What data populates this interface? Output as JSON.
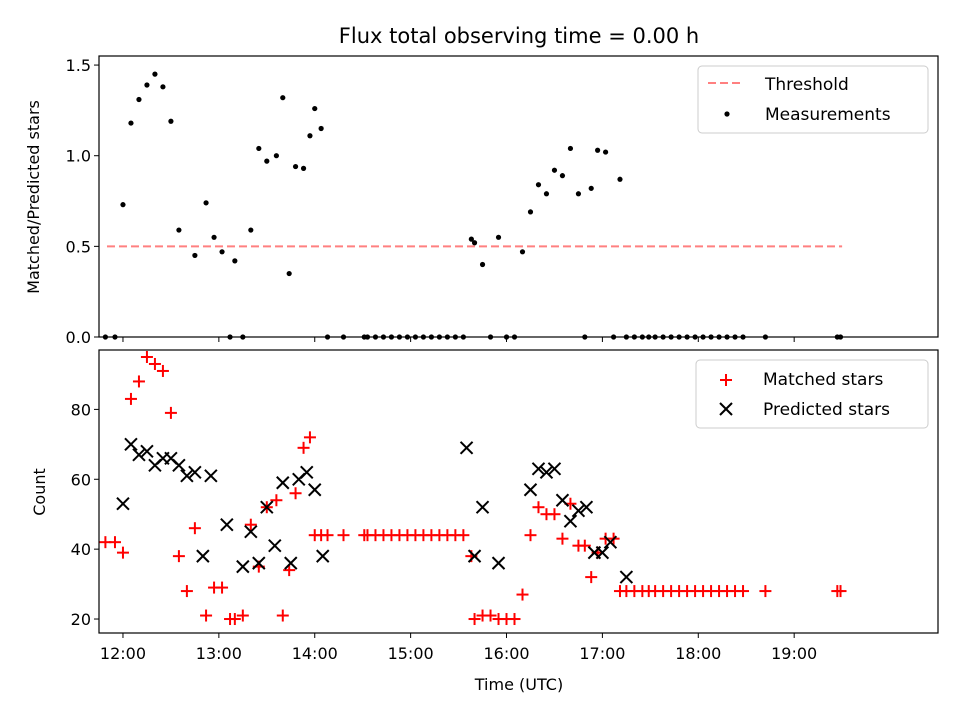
{
  "title": "Flux total observing time = 0.00 h",
  "colors": {
    "threshold": "#ff8080",
    "measurement": "#000000",
    "matched": "#ff0000",
    "predicted": "#000000"
  },
  "chart_data": [
    {
      "type": "scatter",
      "panel": "top",
      "ylabel": "Matched/Predicted stars",
      "xlabel": "",
      "xlim": [
        "11:45",
        "20:30"
      ],
      "ylim": [
        0,
        1.55
      ],
      "yticks": [
        "0.0",
        "0.5",
        "1.0",
        "1.5"
      ],
      "legend": {
        "position": "top-right",
        "entries": [
          "Threshold",
          "Measurements"
        ]
      },
      "threshold": {
        "name": "Threshold",
        "value": 0.5,
        "x_range": [
          "11:50",
          "19:30"
        ]
      },
      "series": [
        {
          "name": "Measurements",
          "x": [
            "11:49",
            "11:55",
            "12:00",
            "12:05",
            "12:10",
            "12:15",
            "12:20",
            "12:25",
            "12:30",
            "12:35",
            "12:45",
            "12:52",
            "12:57",
            "13:02",
            "13:07",
            "13:10",
            "13:15",
            "13:20",
            "13:25",
            "13:30",
            "13:36",
            "13:40",
            "13:44",
            "13:48",
            "13:53",
            "13:57",
            "14:00",
            "14:04",
            "14:08",
            "14:18",
            "14:31",
            "14:33",
            "14:38",
            "14:43",
            "14:48",
            "14:53",
            "14:58",
            "15:03",
            "15:08",
            "15:13",
            "15:18",
            "15:23",
            "15:28",
            "15:33",
            "15:38",
            "15:40",
            "15:45",
            "15:50",
            "15:55",
            "16:00",
            "16:05",
            "16:10",
            "16:15",
            "16:20",
            "16:25",
            "16:30",
            "16:35",
            "16:40",
            "16:45",
            "16:49",
            "16:53",
            "16:57",
            "17:02",
            "17:07",
            "17:11",
            "17:15",
            "17:20",
            "17:25",
            "17:29",
            "17:33",
            "17:38",
            "17:43",
            "17:48",
            "17:53",
            "17:58",
            "18:03",
            "18:08",
            "18:13",
            "18:18",
            "18:23",
            "18:28",
            "18:42",
            "19:27",
            "19:29"
          ],
          "y": [
            0,
            0,
            0.73,
            1.18,
            1.31,
            1.39,
            1.45,
            1.38,
            1.19,
            0.59,
            0.45,
            0.74,
            0.55,
            0.47,
            0,
            0.42,
            0,
            0.59,
            1.04,
            0.97,
            1.0,
            1.32,
            0.35,
            0.94,
            0.93,
            1.11,
            1.26,
            1.15,
            0,
            0,
            0,
            0,
            0,
            0,
            0,
            0,
            0,
            0,
            0,
            0,
            0,
            0,
            0,
            0,
            0.54,
            0.52,
            0.4,
            0,
            0.55,
            0,
            0,
            0.47,
            0.69,
            0.84,
            0.79,
            0.92,
            0.89,
            1.04,
            0.79,
            0,
            0.82,
            1.03,
            1.02,
            0,
            0.87,
            0,
            0,
            0,
            0,
            0,
            0,
            0,
            0,
            0,
            0,
            0,
            0,
            0,
            0,
            0,
            0,
            0,
            0,
            0
          ]
        }
      ]
    },
    {
      "type": "scatter",
      "panel": "bottom",
      "xlabel": "Time (UTC)",
      "ylabel": "Count",
      "xlim": [
        "11:45",
        "20:30"
      ],
      "ylim": [
        16,
        97
      ],
      "xticks": [
        "12:00",
        "13:00",
        "14:00",
        "15:00",
        "16:00",
        "17:00",
        "18:00",
        "19:00"
      ],
      "yticks": [
        "20",
        "40",
        "60",
        "80"
      ],
      "legend": {
        "position": "top-right",
        "entries": [
          "Matched stars",
          "Predicted stars"
        ]
      },
      "series": [
        {
          "name": "Matched stars",
          "marker": "plus",
          "x": [
            "11:49",
            "11:55",
            "12:00",
            "12:05",
            "12:10",
            "12:15",
            "12:20",
            "12:25",
            "12:30",
            "12:35",
            "12:40",
            "12:45",
            "12:52",
            "12:57",
            "13:02",
            "13:07",
            "13:10",
            "13:15",
            "13:20",
            "13:25",
            "13:30",
            "13:36",
            "13:40",
            "13:44",
            "13:48",
            "13:53",
            "13:57",
            "14:00",
            "14:04",
            "14:08",
            "14:18",
            "14:31",
            "14:33",
            "14:38",
            "14:43",
            "14:48",
            "14:53",
            "14:58",
            "15:03",
            "15:08",
            "15:13",
            "15:18",
            "15:23",
            "15:28",
            "15:33",
            "15:38",
            "15:40",
            "15:45",
            "15:50",
            "15:55",
            "16:00",
            "16:05",
            "16:10",
            "16:15",
            "16:20",
            "16:25",
            "16:30",
            "16:35",
            "16:40",
            "16:45",
            "16:49",
            "16:53",
            "16:57",
            "17:02",
            "17:07",
            "17:11",
            "17:15",
            "17:20",
            "17:25",
            "17:29",
            "17:33",
            "17:38",
            "17:43",
            "17:48",
            "17:53",
            "17:58",
            "18:03",
            "18:08",
            "18:13",
            "18:18",
            "18:23",
            "18:28",
            "18:42",
            "19:27",
            "19:29"
          ],
          "y": [
            42,
            42,
            39,
            83,
            88,
            95,
            93,
            91,
            79,
            38,
            28,
            46,
            21,
            29,
            29,
            20,
            20,
            21,
            47,
            35,
            52,
            54,
            21,
            34,
            56,
            69,
            72,
            44,
            44,
            44,
            44,
            44,
            44,
            44,
            44,
            44,
            44,
            44,
            44,
            44,
            44,
            44,
            44,
            44,
            44,
            38,
            20,
            21,
            21,
            20,
            20,
            20,
            27,
            44,
            52,
            50,
            50,
            43,
            53,
            41,
            41,
            32,
            39,
            43,
            43,
            28,
            28,
            28,
            28,
            28,
            28,
            28,
            28,
            28,
            28,
            28,
            28,
            28,
            28,
            28,
            28,
            28,
            28,
            28,
            28
          ]
        },
        {
          "name": "Predicted stars",
          "marker": "x",
          "x": [
            "12:00",
            "12:05",
            "12:10",
            "12:15",
            "12:20",
            "12:25",
            "12:30",
            "12:35",
            "12:40",
            "12:45",
            "12:50",
            "12:55",
            "13:05",
            "13:15",
            "13:20",
            "13:25",
            "13:30",
            "13:35",
            "13:40",
            "13:45",
            "13:50",
            "13:55",
            "14:00",
            "14:05",
            "15:35",
            "15:40",
            "15:45",
            "15:55",
            "16:15",
            "16:20",
            "16:25",
            "16:30",
            "16:35",
            "16:40",
            "16:45",
            "16:50",
            "16:55",
            "17:00",
            "17:05",
            "17:15"
          ],
          "y": [
            53,
            70,
            67,
            68,
            64,
            66,
            66,
            64,
            61,
            62,
            38,
            61,
            47,
            35,
            45,
            36,
            52,
            41,
            59,
            36,
            60,
            62,
            57,
            38,
            69,
            38,
            52,
            36,
            57,
            63,
            62,
            63,
            54,
            48,
            51,
            52,
            39,
            39,
            42,
            32
          ]
        }
      ]
    }
  ]
}
